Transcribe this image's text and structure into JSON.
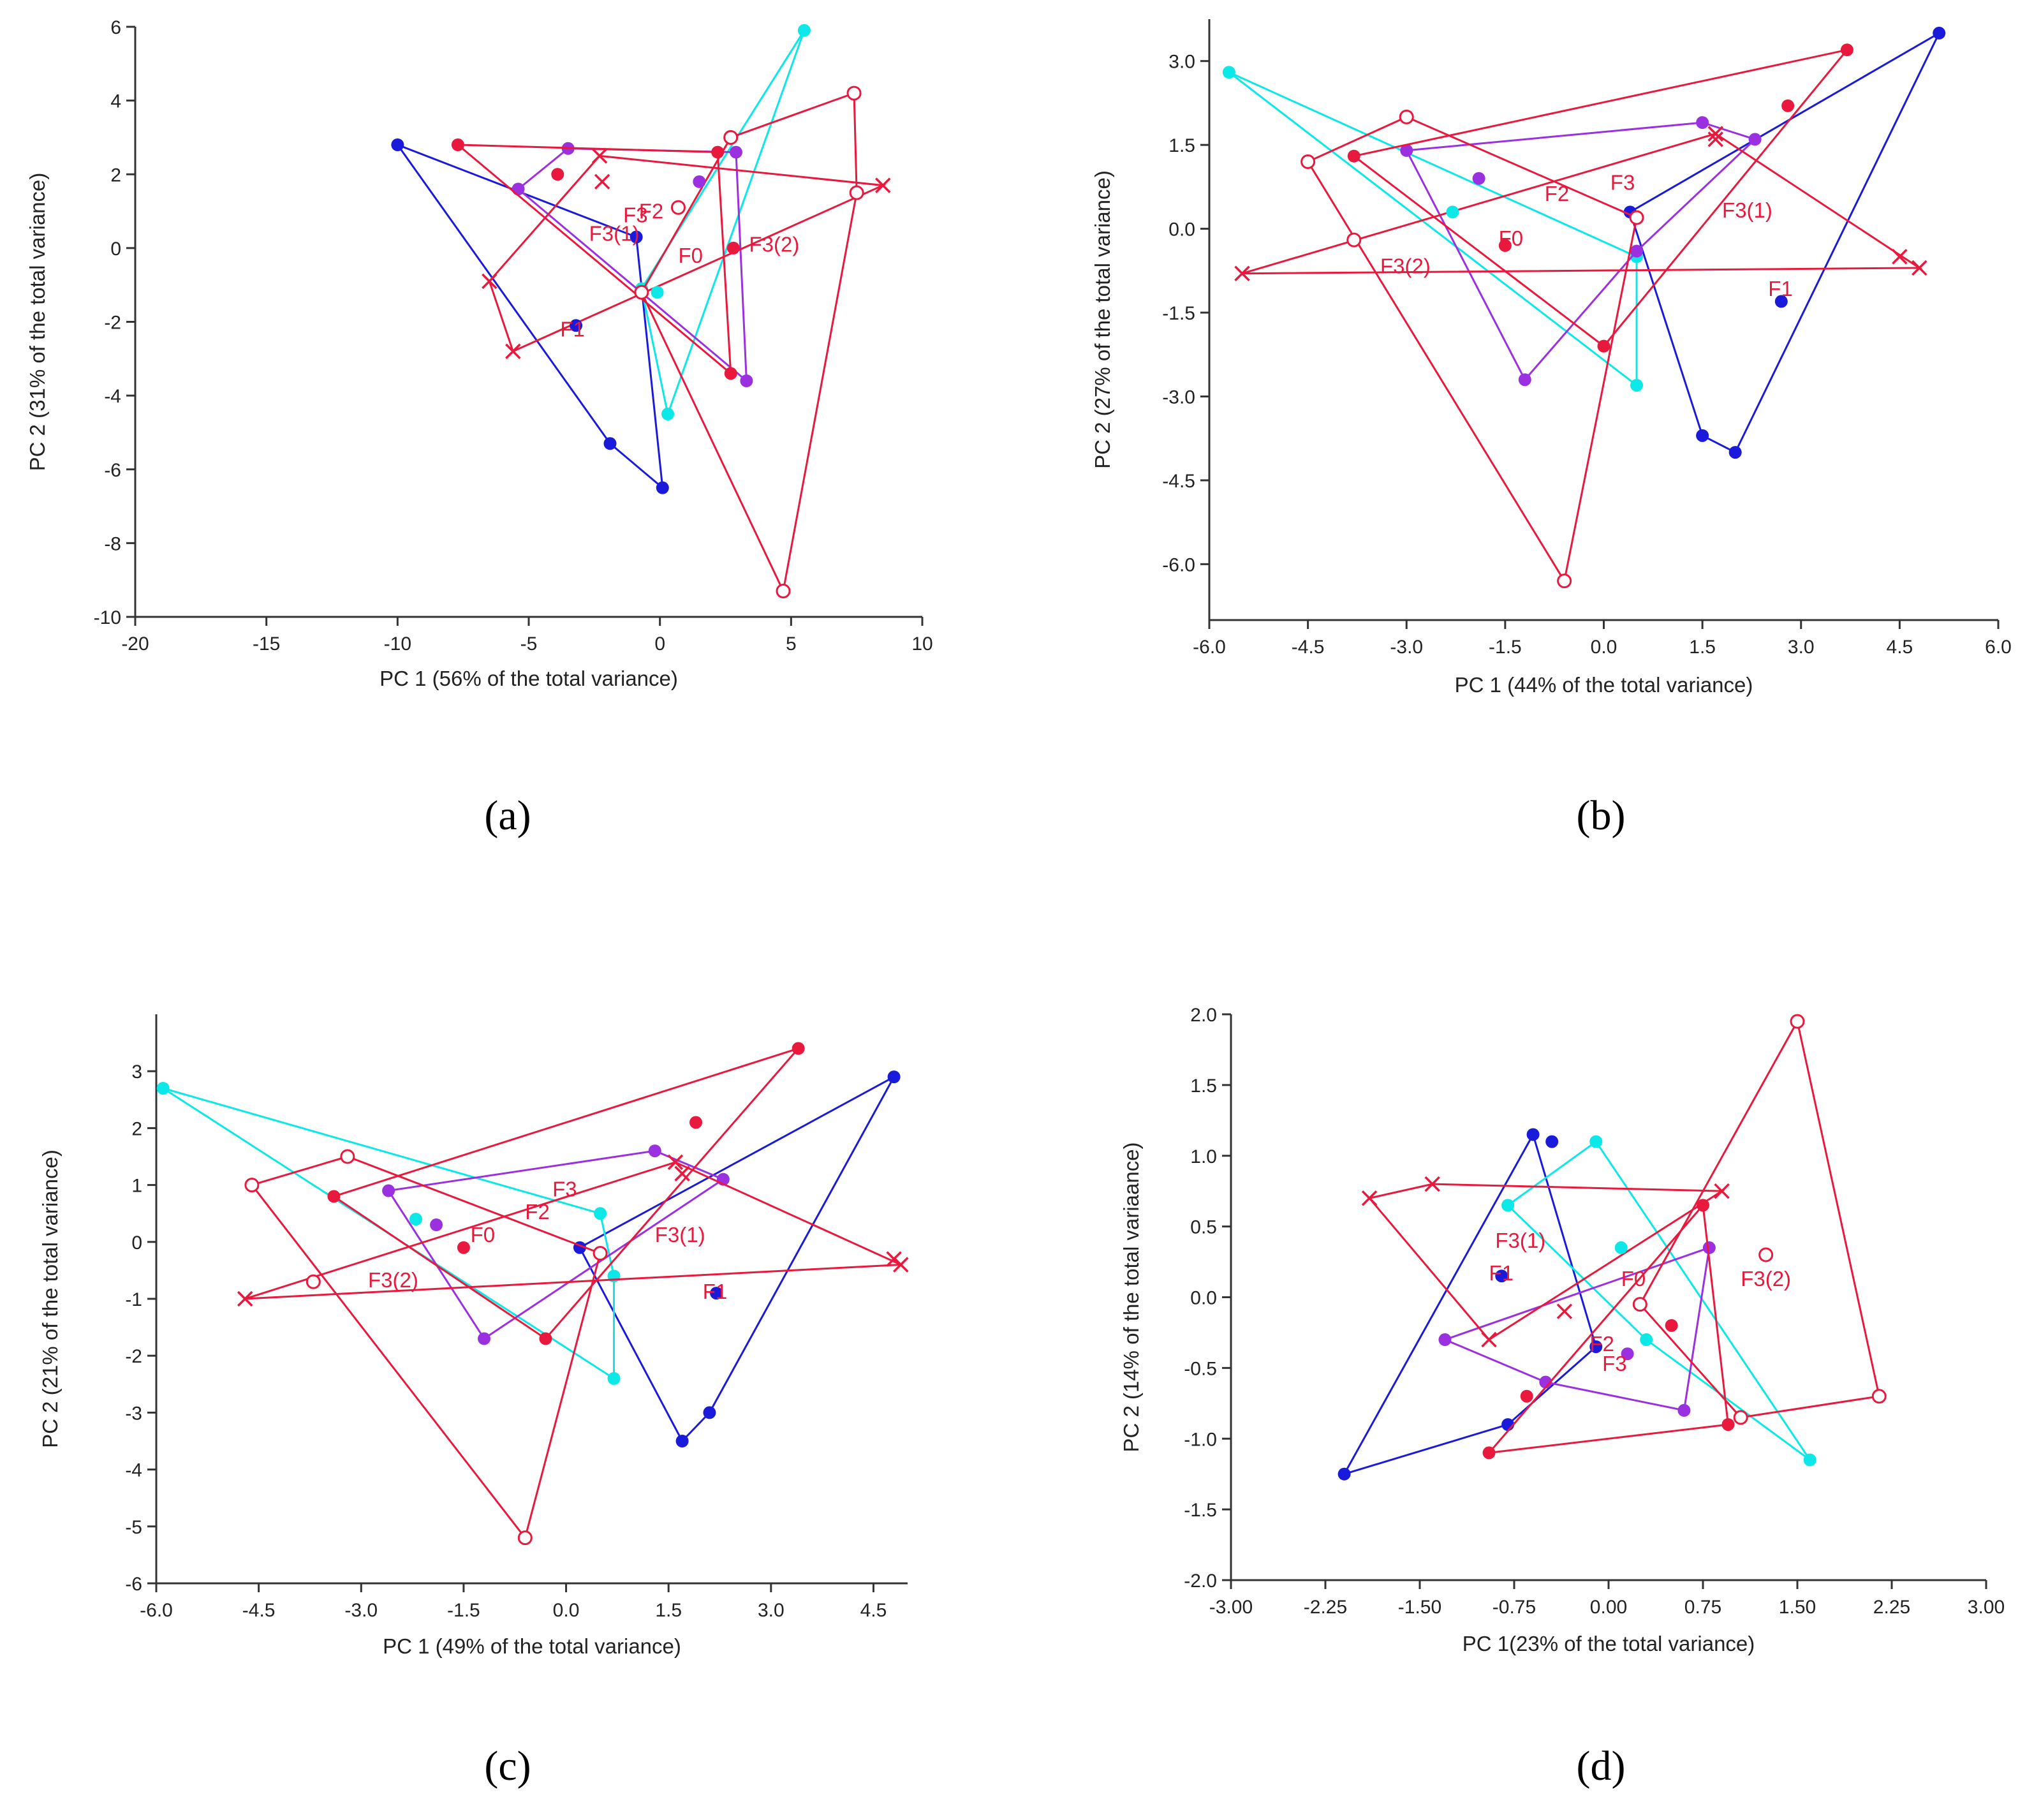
{
  "colors": {
    "F0": "#e8193c",
    "F1": "#1a1adb",
    "F2": "#0ce8e8",
    "F3": "#9b30e0",
    "F3(1)": "#e8193c",
    "F3(2)": "#e8193c",
    "label": "#e8193c",
    "axis": "#333333"
  },
  "chart_data": [
    {
      "type": "scatter",
      "subfigure_label": "(a)",
      "xlabel": "PC 1 (56% of the total variance)",
      "ylabel": "PC 2 (31% of the total variance)",
      "xlim": [
        -20,
        10
      ],
      "ylim": [
        -10,
        6
      ],
      "xticks": [
        -20,
        -15,
        -10,
        -5,
        0,
        5,
        10
      ],
      "yticks": [
        -10,
        -8,
        -6,
        -4,
        -2,
        0,
        2,
        4,
        6
      ],
      "xtick_labels": [
        "-20",
        "-15",
        "-10",
        "-5",
        "0",
        "5",
        "10"
      ],
      "ytick_labels": [
        "-10",
        "-8",
        "-6",
        "-4",
        "-2",
        "0",
        "2",
        "4",
        "6"
      ],
      "series": [
        {
          "group": "F1",
          "marker": "dot",
          "points": [
            [
              -10,
              2.8
            ],
            [
              -1.9,
              -5.3
            ],
            [
              0.1,
              -6.5
            ],
            [
              -0.9,
              0.3
            ],
            [
              -10,
              2.8
            ]
          ]
        },
        {
          "group": "F2",
          "marker": "dot",
          "points": [
            [
              5.5,
              5.9
            ],
            [
              0.3,
              -4.5
            ],
            [
              -0.7,
              -1.1
            ],
            [
              5.5,
              5.9
            ]
          ]
        },
        {
          "group": "F3",
          "marker": "dot",
          "points": [
            [
              -5.4,
              1.6
            ],
            [
              -3.5,
              2.7
            ],
            [
              2.9,
              2.6
            ],
            [
              3.3,
              -3.6
            ],
            [
              -5.4,
              1.6
            ]
          ]
        },
        {
          "group": "F0",
          "marker": "dot",
          "points": [
            [
              -7.7,
              2.8
            ],
            [
              2.2,
              2.6
            ],
            [
              2.7,
              -3.4
            ],
            [
              -7.7,
              2.8
            ]
          ]
        },
        {
          "group": "F3(1)",
          "marker": "cross",
          "points": [
            [
              -6.5,
              -0.9
            ],
            [
              -2.3,
              2.5
            ],
            [
              8.5,
              1.7
            ],
            [
              -5.6,
              -2.8
            ],
            [
              -6.5,
              -0.9
            ]
          ]
        },
        {
          "group": "F3(2)",
          "marker": "ring",
          "points": [
            [
              2.7,
              3.0
            ],
            [
              -0.7,
              -1.2
            ],
            [
              4.7,
              -9.3
            ],
            [
              7.5,
              1.5
            ],
            [
              7.4,
              4.2
            ],
            [
              2.7,
              3.0
            ]
          ]
        }
      ],
      "loose_points": [
        {
          "group": "F0",
          "marker": "dot",
          "x": -3.9,
          "y": 2.0
        },
        {
          "group": "F3",
          "marker": "dot",
          "x": 1.5,
          "y": 1.8
        },
        {
          "group": "F2",
          "marker": "dot",
          "x": -0.1,
          "y": -1.2
        },
        {
          "group": "F3(1)",
          "marker": "cross",
          "x": -2.2,
          "y": 1.8
        },
        {
          "group": "F3(2)",
          "marker": "ring",
          "x": 0.7,
          "y": 1.1
        },
        {
          "group": "F1",
          "marker": "dot",
          "x": -3.2,
          "y": -2.1
        },
        {
          "group": "F0",
          "marker": "dot",
          "x": 2.8,
          "y": 0.0
        }
      ],
      "annotations": [
        {
          "text": "F3",
          "x": -1.4,
          "y": 0.7
        },
        {
          "text": "F3(1)",
          "x": -2.7,
          "y": 0.2
        },
        {
          "text": "F2",
          "x": -0.8,
          "y": 0.8
        },
        {
          "text": "F0",
          "x": 0.7,
          "y": -0.4
        },
        {
          "text": "F3(2)",
          "x": 3.4,
          "y": -0.1
        },
        {
          "text": "F1",
          "x": -3.8,
          "y": -2.4
        }
      ]
    },
    {
      "type": "scatter",
      "subfigure_label": "(b)",
      "xlabel": "PC 1 (44% of the total variance)",
      "ylabel": "PC 2 (27% of the total variance)",
      "xlim": [
        -6,
        6
      ],
      "ylim": [
        -7,
        3.75
      ],
      "xticks": [
        -6,
        -4.5,
        -3,
        -1.5,
        0,
        1.5,
        3,
        4.5,
        6
      ],
      "yticks": [
        -6,
        -4.5,
        -3,
        -1.5,
        0,
        1.5,
        3
      ],
      "xtick_labels": [
        "-6.0",
        "-4.5",
        "-3.0",
        "-1.5",
        "0.0",
        "1.5",
        "3.0",
        "4.5",
        "6.0"
      ],
      "ytick_labels": [
        "-6.0",
        "-4.5",
        "-3.0",
        "-1.5",
        "0.0",
        "1.5",
        "3.0"
      ],
      "series": [
        {
          "group": "F1",
          "marker": "dot",
          "points": [
            [
              5.1,
              3.5
            ],
            [
              2.0,
              -4.0
            ],
            [
              1.5,
              -3.7
            ],
            [
              0.4,
              0.3
            ],
            [
              5.1,
              3.5
            ]
          ]
        },
        {
          "group": "F2",
          "marker": "dot",
          "points": [
            [
              -5.7,
              2.8
            ],
            [
              0.5,
              -2.8
            ],
            [
              0.5,
              -0.5
            ],
            [
              -5.7,
              2.8
            ]
          ]
        },
        {
          "group": "F3",
          "marker": "dot",
          "points": [
            [
              -3.0,
              1.4
            ],
            [
              1.5,
              1.9
            ],
            [
              2.3,
              1.6
            ],
            [
              0.5,
              -0.4
            ],
            [
              -1.2,
              -2.7
            ],
            [
              -3.0,
              1.4
            ]
          ]
        },
        {
          "group": "F0",
          "marker": "dot",
          "points": [
            [
              -3.8,
              1.3
            ],
            [
              3.7,
              3.2
            ],
            [
              0.0,
              -2.1
            ],
            [
              -3.8,
              1.3
            ]
          ]
        },
        {
          "group": "F3(1)",
          "marker": "cross",
          "points": [
            [
              -5.5,
              -0.8
            ],
            [
              1.7,
              1.7
            ],
            [
              4.8,
              -0.7
            ],
            [
              -5.5,
              -0.8
            ]
          ]
        },
        {
          "group": "F3(2)",
          "marker": "ring",
          "points": [
            [
              -4.5,
              1.2
            ],
            [
              -0.6,
              -6.3
            ],
            [
              0.5,
              0.2
            ],
            [
              -3.0,
              2.0
            ],
            [
              -4.5,
              1.2
            ]
          ]
        }
      ],
      "loose_points": [
        {
          "group": "F0",
          "marker": "dot",
          "x": 2.8,
          "y": 2.2
        },
        {
          "group": "F3",
          "marker": "dot",
          "x": -1.9,
          "y": 0.9
        },
        {
          "group": "F2",
          "marker": "dot",
          "x": -2.3,
          "y": 0.3
        },
        {
          "group": "F3(1)",
          "marker": "cross",
          "x": 1.7,
          "y": 1.6
        },
        {
          "group": "F3(1)",
          "marker": "cross",
          "x": 4.5,
          "y": -0.5
        },
        {
          "group": "F3(2)",
          "marker": "ring",
          "x": -3.8,
          "y": -0.2
        },
        {
          "group": "F1",
          "marker": "dot",
          "x": 2.7,
          "y": -1.3
        },
        {
          "group": "F0",
          "marker": "dot",
          "x": -1.5,
          "y": -0.3
        }
      ],
      "annotations": [
        {
          "text": "F3",
          "x": 0.1,
          "y": 0.7
        },
        {
          "text": "F2",
          "x": -0.9,
          "y": 0.5
        },
        {
          "text": "F3(1)",
          "x": 1.8,
          "y": 0.2
        },
        {
          "text": "F0",
          "x": -1.6,
          "y": -0.3
        },
        {
          "text": "F3(2)",
          "x": -3.4,
          "y": -0.8
        },
        {
          "text": "F1",
          "x": 2.5,
          "y": -1.2
        }
      ]
    },
    {
      "type": "scatter",
      "subfigure_label": "(c)",
      "xlabel": "PC 1 (49% of the total variance)",
      "ylabel": "PC 2 (21% of the total variance)",
      "xlim": [
        -6,
        5
      ],
      "ylim": [
        -6,
        4
      ],
      "xticks": [
        -6,
        -4.5,
        -3,
        -1.5,
        0,
        1.5,
        3,
        4.5
      ],
      "yticks": [
        -6,
        -5,
        -4,
        -3,
        -2,
        -1,
        0,
        1,
        2,
        3
      ],
      "xtick_labels": [
        "-6.0",
        "-4.5",
        "-3.0",
        "-1.5",
        "0.0",
        "1.5",
        "3.0",
        "4.5"
      ],
      "ytick_labels": [
        "-6",
        "-5",
        "-4",
        "-3",
        "-2",
        "-1",
        "0",
        "1",
        "2",
        "3"
      ],
      "series": [
        {
          "group": "F1",
          "marker": "dot",
          "points": [
            [
              4.8,
              2.9
            ],
            [
              2.1,
              -3.0
            ],
            [
              1.7,
              -3.5
            ],
            [
              0.2,
              -0.1
            ],
            [
              4.8,
              2.9
            ]
          ]
        },
        {
          "group": "F2",
          "marker": "dot",
          "points": [
            [
              -5.9,
              2.7
            ],
            [
              0.7,
              -2.4
            ],
            [
              0.7,
              -0.6
            ],
            [
              0.5,
              0.5
            ],
            [
              -5.9,
              2.7
            ]
          ]
        },
        {
          "group": "F3",
          "marker": "dot",
          "points": [
            [
              -2.6,
              0.9
            ],
            [
              1.3,
              1.6
            ],
            [
              2.3,
              1.1
            ],
            [
              -1.2,
              -1.7
            ],
            [
              -2.6,
              0.9
            ]
          ]
        },
        {
          "group": "F0",
          "marker": "dot",
          "points": [
            [
              -3.4,
              0.8
            ],
            [
              3.4,
              3.4
            ],
            [
              -0.3,
              -1.7
            ],
            [
              -3.4,
              0.8
            ]
          ]
        },
        {
          "group": "F3(1)",
          "marker": "cross",
          "points": [
            [
              -4.7,
              -1.0
            ],
            [
              1.6,
              1.4
            ],
            [
              4.9,
              -0.4
            ],
            [
              -4.7,
              -1.0
            ]
          ]
        },
        {
          "group": "F3(2)",
          "marker": "ring",
          "points": [
            [
              -4.6,
              1.0
            ],
            [
              -0.6,
              -5.2
            ],
            [
              0.5,
              -0.2
            ],
            [
              -3.2,
              1.5
            ],
            [
              -4.6,
              1.0
            ]
          ]
        }
      ],
      "loose_points": [
        {
          "group": "F0",
          "marker": "dot",
          "x": 1.9,
          "y": 2.1
        },
        {
          "group": "F3",
          "marker": "dot",
          "x": -1.9,
          "y": 0.3
        },
        {
          "group": "F2",
          "marker": "dot",
          "x": -2.2,
          "y": 0.4
        },
        {
          "group": "F3(1)",
          "marker": "cross",
          "x": 1.7,
          "y": 1.2
        },
        {
          "group": "F3(1)",
          "marker": "cross",
          "x": 4.8,
          "y": -0.3
        },
        {
          "group": "F3(2)",
          "marker": "ring",
          "x": -3.7,
          "y": -0.7
        },
        {
          "group": "F1",
          "marker": "dot",
          "x": 2.2,
          "y": -0.9
        },
        {
          "group": "F0",
          "marker": "dot",
          "x": -1.5,
          "y": -0.1
        }
      ],
      "annotations": [
        {
          "text": "F3",
          "x": -0.2,
          "y": 0.8
        },
        {
          "text": "F2",
          "x": -0.6,
          "y": 0.4
        },
        {
          "text": "F3(1)",
          "x": 1.3,
          "y": 0.0
        },
        {
          "text": "F0",
          "x": -1.4,
          "y": 0.0
        },
        {
          "text": "F3(2)",
          "x": -2.9,
          "y": -0.8
        },
        {
          "text": "F1",
          "x": 2.0,
          "y": -1.0
        }
      ]
    },
    {
      "type": "scatter",
      "subfigure_label": "(d)",
      "xlabel": "PC 1(23% of the total variance)",
      "ylabel": "PC 2 (14% of the total variaance)",
      "xlim": [
        -3,
        3
      ],
      "ylim": [
        -2,
        2
      ],
      "xticks": [
        -3,
        -2.25,
        -1.5,
        -0.75,
        0,
        0.75,
        1.5,
        2.25,
        3
      ],
      "yticks": [
        -2,
        -1.5,
        -1,
        -0.5,
        0,
        0.5,
        1,
        1.5,
        2
      ],
      "xtick_labels": [
        "-3.00",
        "-2.25",
        "-1.50",
        "-0.75",
        "0.00",
        "0.75",
        "1.50",
        "2.25",
        "3.00"
      ],
      "ytick_labels": [
        "-2.0",
        "-1.5",
        "-1.0",
        "-0.5",
        "0.0",
        "0.5",
        "1.0",
        "1.5",
        "2.0"
      ],
      "series": [
        {
          "group": "F1",
          "marker": "dot",
          "points": [
            [
              -2.1,
              -1.25
            ],
            [
              -0.6,
              1.15
            ],
            [
              -0.1,
              -0.35
            ],
            [
              -0.8,
              -0.9
            ],
            [
              -2.1,
              -1.25
            ]
          ]
        },
        {
          "group": "F2",
          "marker": "dot",
          "points": [
            [
              -0.8,
              0.65
            ],
            [
              -0.1,
              1.1
            ],
            [
              1.6,
              -1.15
            ],
            [
              0.3,
              -0.3
            ],
            [
              -0.8,
              0.65
            ]
          ]
        },
        {
          "group": "F3",
          "marker": "dot",
          "points": [
            [
              -1.3,
              -0.3
            ],
            [
              0.8,
              0.35
            ],
            [
              0.6,
              -0.8
            ],
            [
              -0.5,
              -0.6
            ],
            [
              -1.3,
              -0.3
            ]
          ]
        },
        {
          "group": "F0",
          "marker": "dot",
          "points": [
            [
              -0.95,
              -1.1
            ],
            [
              0.75,
              0.65
            ],
            [
              0.95,
              -0.9
            ],
            [
              -0.95,
              -1.1
            ]
          ]
        },
        {
          "group": "F3(1)",
          "marker": "cross",
          "points": [
            [
              -1.9,
              0.7
            ],
            [
              -1.4,
              0.8
            ],
            [
              0.9,
              0.75
            ],
            [
              -0.95,
              -0.3
            ],
            [
              -1.9,
              0.7
            ]
          ]
        },
        {
          "group": "F3(2)",
          "marker": "ring",
          "points": [
            [
              1.5,
              1.95
            ],
            [
              2.15,
              -0.7
            ],
            [
              1.05,
              -0.85
            ],
            [
              0.25,
              -0.05
            ],
            [
              1.5,
              1.95
            ]
          ]
        }
      ],
      "loose_points": [
        {
          "group": "F1",
          "marker": "dot",
          "x": -0.85,
          "y": 0.15
        },
        {
          "group": "F1",
          "marker": "dot",
          "x": -0.45,
          "y": 1.1
        },
        {
          "group": "F2",
          "marker": "dot",
          "x": 0.1,
          "y": 0.35
        },
        {
          "group": "F0",
          "marker": "dot",
          "x": 0.5,
          "y": -0.2
        },
        {
          "group": "F0",
          "marker": "dot",
          "x": -0.65,
          "y": -0.7
        },
        {
          "group": "F3",
          "marker": "dot",
          "x": 0.15,
          "y": -0.4
        },
        {
          "group": "F3(1)",
          "marker": "cross",
          "x": -0.35,
          "y": -0.1
        },
        {
          "group": "F3(2)",
          "marker": "ring",
          "x": 1.25,
          "y": 0.3
        }
      ],
      "annotations": [
        {
          "text": "F3(1)",
          "x": -0.9,
          "y": 0.35
        },
        {
          "text": "F1",
          "x": -0.95,
          "y": 0.12
        },
        {
          "text": "F0",
          "x": 0.1,
          "y": 0.08
        },
        {
          "text": "F3(2)",
          "x": 1.05,
          "y": 0.08
        },
        {
          "text": "F2",
          "x": -0.15,
          "y": -0.38
        },
        {
          "text": "F3",
          "x": -0.05,
          "y": -0.52
        }
      ]
    }
  ]
}
